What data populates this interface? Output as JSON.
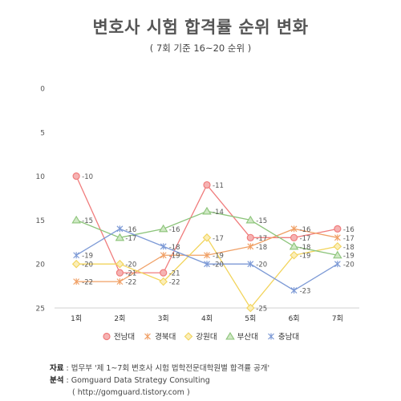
{
  "title": "변호사 시험 합격률 순위 변화",
  "subtitle": {
    "prefix": "( 7회 기준 ",
    "middle": "16~20",
    "suffix": " 순위 )"
  },
  "chart_data": {
    "type": "line",
    "categories": [
      "1회",
      "2회",
      "3회",
      "4회",
      "5회",
      "6회",
      "7회"
    ],
    "y_ticks": [
      0,
      5,
      10,
      15,
      20,
      25
    ],
    "ylim": [
      0,
      25
    ],
    "y_inverted": true,
    "grid": false,
    "legend_position": "bottom",
    "series": [
      {
        "name": "전남대",
        "values": [
          10,
          21,
          21,
          11,
          17,
          17,
          16
        ],
        "color": "#f07c7c",
        "marker": "circle"
      },
      {
        "name": "경북대",
        "values": [
          22,
          22,
          19,
          19,
          18,
          16,
          17
        ],
        "color": "#f0a066",
        "marker": "x"
      },
      {
        "name": "강원대",
        "values": [
          20,
          20,
          22,
          17,
          25,
          19,
          18
        ],
        "color": "#f2d45c",
        "marker": "diamond"
      },
      {
        "name": "부산대",
        "values": [
          15,
          17,
          16,
          14,
          15,
          18,
          19
        ],
        "color": "#8cc47a",
        "marker": "triangle"
      },
      {
        "name": "충남대",
        "values": [
          19,
          16,
          18,
          20,
          20,
          23,
          20
        ],
        "color": "#7d9ad6",
        "marker": "x"
      }
    ]
  },
  "footer": {
    "source_label": "자료",
    "source_text": " : 법무부 '제 1~7회 변호사 시험 법학전문대학원별 합격률 공개'",
    "analysis_label": "분석",
    "analysis_text": " : Gomguard Data Strategy Consulting",
    "url_text": "( http://gomguard.tistory.com )"
  }
}
